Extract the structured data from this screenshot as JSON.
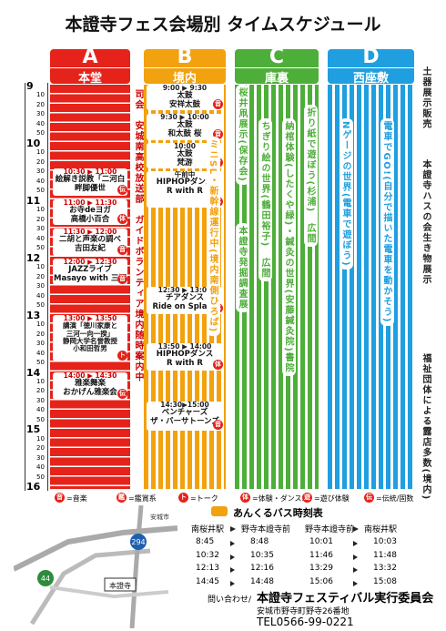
{
  "title": "本證寺フェス会場別 タイムスケジュール",
  "time_axis": {
    "hours": [
      "9",
      "10",
      "11",
      "12",
      "13",
      "14",
      "15",
      "16"
    ],
    "minutes": [
      "10",
      "20",
      "30",
      "40",
      "50"
    ]
  },
  "venues": [
    {
      "letter": "A",
      "name": "本堂",
      "color": "#e5231b",
      "events": [
        {
          "time": "10:30 ▶ 11:00",
          "lines": [
            "絵解き説教「二河白",
            "畔脚優世"
          ],
          "icon": "伝"
        },
        {
          "time": "11:00 ▶ 11:30",
          "lines": [
            "お寺deヨガ",
            "高橋小百合"
          ],
          "icon": "体"
        },
        {
          "time": "11:30 ▶ 12:00",
          "lines": [
            "二胡と声楽の調べ",
            "吉田友紀"
          ],
          "icon": "音"
        },
        {
          "time": "12:00 ▶ 12:30",
          "lines": [
            "JAZZライブ",
            "Masayo with 三河"
          ],
          "icon": "音"
        },
        {
          "time": "13:00 ▶ 13:50",
          "lines": [
            "講演「徳川家康と",
            "三河一向一揆」",
            "静岡大学名誉教授",
            "小和田哲男"
          ],
          "icon": "ト"
        },
        {
          "time": "14:00 ▶ 14:30",
          "lines": [
            "雅楽舞楽",
            "おかげん雅楽会"
          ],
          "icon": "伝"
        }
      ],
      "notes": [
        {
          "text": "司会　安城南高校放送部　ガイドボランティア境内随時案内中"
        }
      ]
    },
    {
      "letter": "B",
      "name": "境内",
      "color": "#f2a10f",
      "events": [
        {
          "time": "9:00 ▶ 9:30",
          "lines": [
            "太鼓",
            "安祥太鼓"
          ],
          "icon": "音"
        },
        {
          "time": "9:30 ▶ 10:00",
          "lines": [
            "太鼓",
            "和太鼓 桜"
          ],
          "icon": "音"
        },
        {
          "time": "10:00",
          "lines": [
            "太鼓",
            "梵游"
          ],
          "icon": "音"
        },
        {
          "time": "午前中",
          "lines": [
            "HIPHOPダンス",
            "R with R"
          ],
          "icon": "体"
        },
        {
          "time": "12:30 ▶ 13:00",
          "lines": [
            "チアダンス",
            "Ride on Splash"
          ],
          "icon": "体"
        },
        {
          "time": "13:50 ▶ 14:00",
          "lines": [
            "HIPHOPダンス",
            "R with R"
          ],
          "icon": "体"
        },
        {
          "time": "14:30▶15:00",
          "lines": [
            "ベンチャーズ",
            "ザ・バーサトーンズ"
          ],
          "icon": "音"
        }
      ],
      "notes": [
        {
          "text": "ミニSL・新幹線運行中(境内南側ひろば)"
        }
      ]
    },
    {
      "letter": "C",
      "name": "庫裏",
      "color": "#4eae3a",
      "events": [],
      "notes": [
        {
          "text": "桜井凧展示(保存会)"
        },
        {
          "text": "本證寺発掘調査展"
        },
        {
          "text": "ちぎり絵の世界(鶴田裕子)　広間"
        },
        {
          "text": "納棺体験(したくや緑)・鍼灸の世界(安藤鍼灸院)書院"
        },
        {
          "text": "折り紙で遊ぼう(杉浦)　広間"
        }
      ]
    },
    {
      "letter": "D",
      "name": "西座敷",
      "color": "#1f9fe0",
      "events": [],
      "notes": [
        {
          "text": "Nゲージの世界(電車で遊ぼう)"
        },
        {
          "text": "電車でGO!(自分で描いた電車を動かそう)"
        }
      ]
    }
  ],
  "side_notes": [
    "土器展示販売",
    "本證寺ハスの会生き物展示",
    "福祉団体による露店多数(境内)"
  ],
  "legend": [
    {
      "icon": "音",
      "label": "=音楽"
    },
    {
      "icon": "鑑",
      "label": "=鑑賞系"
    },
    {
      "icon": "ト",
      "label": "=トーク"
    },
    {
      "icon": "体",
      "label": "=体験・ダンス系"
    },
    {
      "icon": "遊",
      "label": "=遊び体験"
    },
    {
      "icon": "伝",
      "label": "=伝統/固数"
    }
  ],
  "bus": {
    "title": "あんくるバス時刻表",
    "groups": [
      {
        "from": "南桜井駅",
        "to": "野寺本證寺前",
        "rows": [
          [
            "8:45",
            "8:48"
          ],
          [
            "10:32",
            "10:35"
          ],
          [
            "12:13",
            "12:16"
          ],
          [
            "14:45",
            "14:48"
          ]
        ]
      },
      {
        "from": "野寺本證寺前",
        "to": "南桜井駅",
        "rows": [
          [
            "10:01",
            "10:03"
          ],
          [
            "11:46",
            "11:48"
          ],
          [
            "13:29",
            "13:32"
          ],
          [
            "15:06",
            "15:08"
          ]
        ]
      }
    ]
  },
  "contact": {
    "prefix": "問い合わせ/",
    "org": "本證寺フェスティバル実行委員会",
    "address": "安城市野寺町野寺26番地",
    "tel": "TEL0566-99-0221"
  },
  "map": {
    "labels": [
      "294",
      "44",
      "本證寺",
      "安城市"
    ]
  }
}
